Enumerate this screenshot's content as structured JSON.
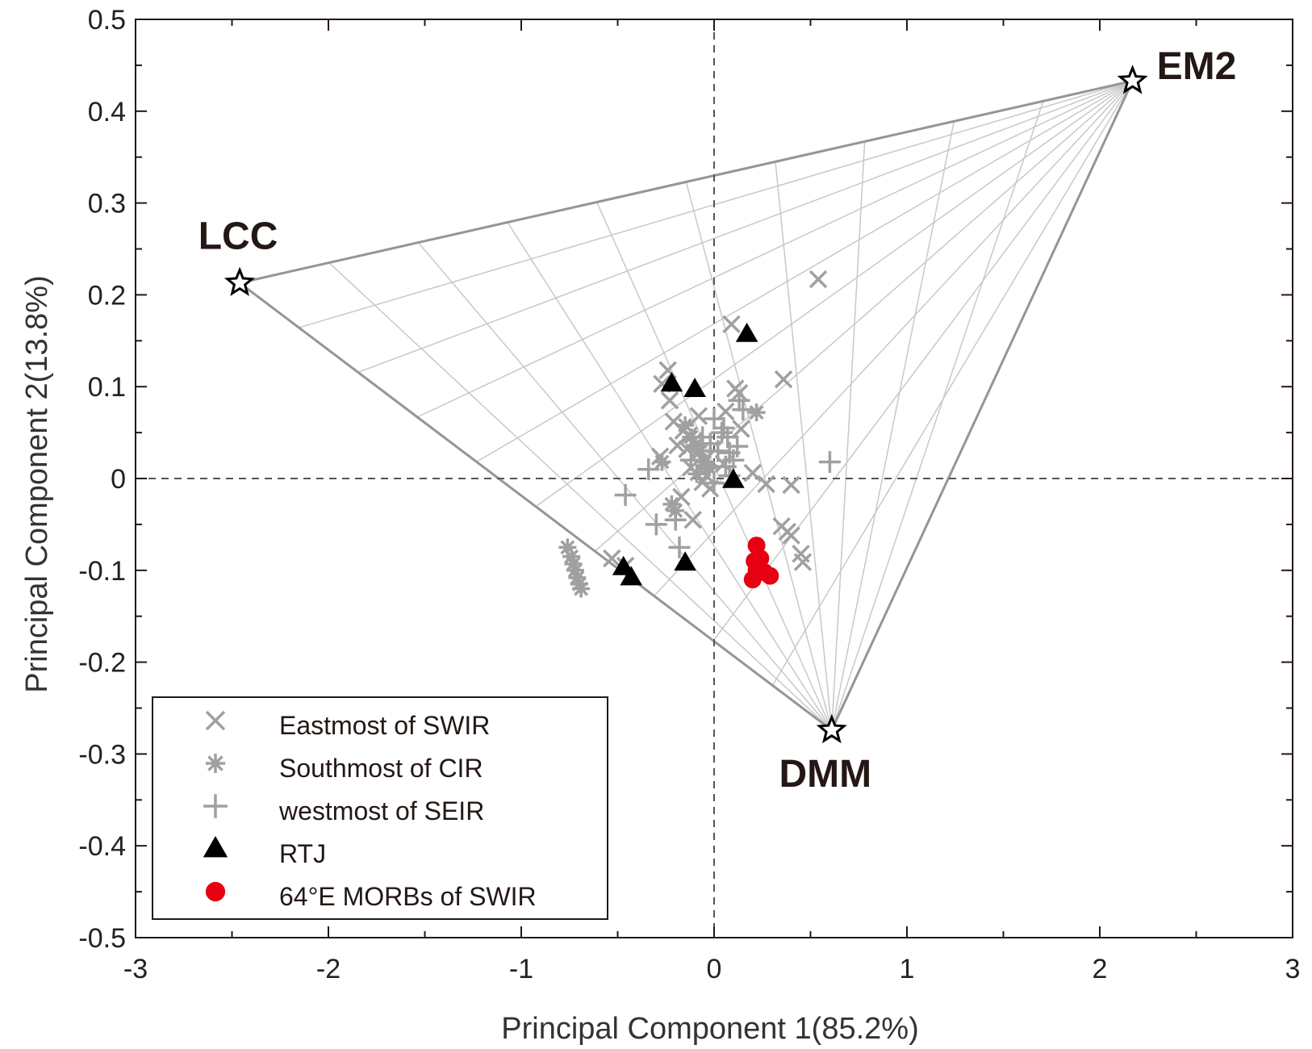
{
  "chart_data": {
    "type": "scatter",
    "title": "",
    "xlabel": "Principal Component 1(85.2%)",
    "ylabel": "Principal Component 2(13.8%)",
    "xlim": [
      -3,
      3
    ],
    "ylim": [
      -0.5,
      0.5
    ],
    "xticks": [
      -3,
      -2,
      -1,
      0,
      1,
      2,
      3
    ],
    "yticks": [
      0.5,
      0.4,
      0.3,
      0.2,
      0.1,
      0,
      -0.1,
      -0.2,
      -0.3,
      -0.4,
      -0.5
    ],
    "xtick_labels": [
      "-3",
      "-2",
      "-1",
      "0",
      "1",
      "2",
      "3"
    ],
    "ytick_labels": [
      "0.5",
      "0.4",
      "0.3",
      "0.2",
      "0.1",
      "0",
      "-0.1",
      "-0.2",
      "-0.3",
      "-0.4",
      "-0.5"
    ],
    "end_members": [
      {
        "name": "LCC",
        "x": -2.46,
        "y": 0.213
      },
      {
        "name": "EM2",
        "x": 2.17,
        "y": 0.433
      },
      {
        "name": "DMM",
        "x": 0.61,
        "y": -0.274
      }
    ],
    "mixing_grid": {
      "divisions": 10
    },
    "series": [
      {
        "name": "Eastmost of SWIR",
        "marker": "x",
        "color": "#a0a0a0",
        "points": [
          [
            0.54,
            0.217
          ],
          [
            0.09,
            0.168
          ],
          [
            0.36,
            0.108
          ],
          [
            -0.24,
            0.118
          ],
          [
            -0.27,
            0.103
          ],
          [
            -0.23,
            0.085
          ],
          [
            0.11,
            0.098
          ],
          [
            0.13,
            0.093
          ],
          [
            0.06,
            0.073
          ],
          [
            -0.08,
            0.068
          ],
          [
            -0.21,
            0.062
          ],
          [
            -0.16,
            0.052
          ],
          [
            -0.13,
            0.047
          ],
          [
            -0.1,
            0.042
          ],
          [
            -0.19,
            0.036
          ],
          [
            -0.14,
            0.032
          ],
          [
            -0.08,
            0.028
          ],
          [
            -0.04,
            0.022
          ],
          [
            -0.28,
            0.024
          ],
          [
            0.14,
            0.054
          ],
          [
            -0.12,
            0.012
          ],
          [
            0.05,
            0.016
          ],
          [
            0.2,
            0.006
          ],
          [
            0.27,
            -0.006
          ],
          [
            0.4,
            -0.007
          ],
          [
            -0.06,
            -0.004
          ],
          [
            -0.02,
            -0.011
          ],
          [
            0.35,
            -0.052
          ],
          [
            0.4,
            -0.062
          ],
          [
            0.45,
            -0.082
          ],
          [
            0.46,
            -0.091
          ],
          [
            0.38,
            -0.058
          ],
          [
            -0.53,
            -0.087
          ],
          [
            -0.46,
            -0.095
          ],
          [
            -0.11,
            -0.045
          ],
          [
            -0.04,
            0.003
          ],
          [
            -0.17,
            -0.02
          ]
        ]
      },
      {
        "name": "Southmost of CIR",
        "marker": "star",
        "color": "#a0a0a0",
        "points": [
          [
            -0.76,
            -0.075
          ],
          [
            -0.74,
            -0.085
          ],
          [
            -0.73,
            -0.093
          ],
          [
            -0.72,
            -0.1
          ],
          [
            -0.71,
            -0.108
          ],
          [
            -0.7,
            -0.115
          ],
          [
            -0.69,
            -0.12
          ],
          [
            -0.22,
            -0.028
          ],
          [
            -0.2,
            -0.035
          ],
          [
            -0.12,
            0.045
          ],
          [
            -0.1,
            0.036
          ],
          [
            -0.07,
            0.03
          ],
          [
            -0.05,
            0.018
          ],
          [
            -0.03,
            0.012
          ],
          [
            -0.09,
            0.005
          ],
          [
            0.22,
            0.072
          ],
          [
            -0.27,
            0.018
          ],
          [
            -0.15,
            0.058
          ]
        ]
      },
      {
        "name": "westmost of SEIR",
        "marker": "plus",
        "color": "#a0a0a0",
        "points": [
          [
            0.6,
            0.018
          ],
          [
            -0.46,
            -0.018
          ],
          [
            -0.3,
            -0.05
          ],
          [
            -0.2,
            -0.045
          ],
          [
            -0.18,
            -0.075
          ],
          [
            -0.34,
            0.01
          ],
          [
            -0.04,
            0.014
          ],
          [
            0.0,
            0.065
          ],
          [
            0.05,
            0.055
          ],
          [
            0.07,
            0.045
          ],
          [
            0.12,
            0.035
          ],
          [
            0.08,
            0.028
          ],
          [
            0.1,
            0.02
          ],
          [
            0.06,
            0.013
          ],
          [
            -0.02,
            0.038
          ],
          [
            0.02,
            0.03
          ],
          [
            0.04,
            0.05
          ],
          [
            0.15,
            0.075
          ],
          [
            0.13,
            0.085
          ],
          [
            -0.06,
            0.045
          ],
          [
            0.0,
            -0.005
          ],
          [
            0.08,
            0.003
          ],
          [
            -0.12,
            0.02
          ]
        ]
      },
      {
        "name": "RTJ",
        "marker": "triangle",
        "color": "#000000",
        "points": [
          [
            0.17,
            0.157
          ],
          [
            -0.22,
            0.103
          ],
          [
            -0.1,
            0.097
          ],
          [
            0.1,
            -0.002
          ],
          [
            -0.15,
            -0.092
          ],
          [
            -0.47,
            -0.097
          ],
          [
            -0.43,
            -0.108
          ]
        ]
      },
      {
        "name": "64°E MORBs of SWIR",
        "marker": "circle",
        "color": "#e60012",
        "points": [
          [
            0.22,
            -0.073
          ],
          [
            0.21,
            -0.09
          ],
          [
            0.22,
            -0.1
          ],
          [
            0.2,
            -0.11
          ],
          [
            0.26,
            -0.102
          ],
          [
            0.29,
            -0.106
          ],
          [
            0.24,
            -0.087
          ]
        ]
      }
    ]
  }
}
